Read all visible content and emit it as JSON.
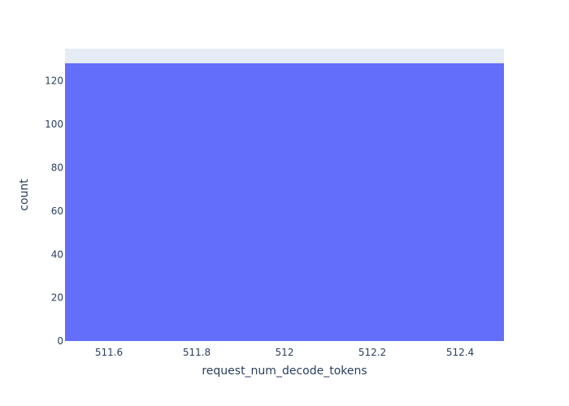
{
  "colors": {
    "plot_background": "#e5ecf6",
    "bar": "#636efa",
    "text": "#2a3f5f",
    "page_background": "#ffffff"
  },
  "chart_data": {
    "type": "bar",
    "title": "",
    "xlabel": "request_num_decode_tokens",
    "ylabel": "count",
    "x_bins": [
      {
        "x0": 511.5,
        "x1": 512.5,
        "count": 128
      }
    ],
    "xlim": [
      511.5,
      512.5
    ],
    "ylim": [
      0,
      134.7
    ],
    "x_ticks": [
      511.6,
      511.8,
      512,
      512.2,
      512.4
    ],
    "x_tick_labels": [
      "511.6",
      "511.8",
      "512",
      "512.2",
      "512.4"
    ],
    "y_ticks": [
      0,
      20,
      40,
      60,
      80,
      100,
      120
    ],
    "y_tick_labels": [
      "0",
      "20",
      "40",
      "60",
      "80",
      "100",
      "120"
    ],
    "grid": false,
    "legend": "none"
  }
}
